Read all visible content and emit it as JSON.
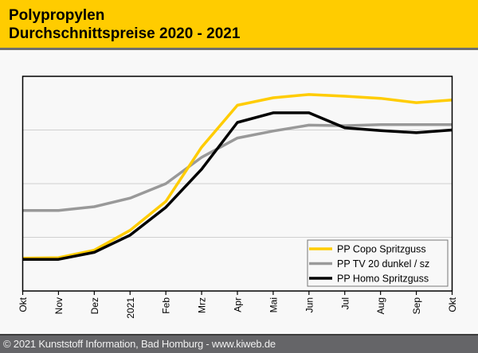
{
  "header": {
    "title_line1": "Polypropylen",
    "title_line2": "Durchschnittspreise 2020 - 2021"
  },
  "footer": {
    "text": "© 2021 Kunststoff Information, Bad Homburg - www.kiweb.de"
  },
  "colors": {
    "header_bg": "#ffcc00",
    "copo": "#ffcc00",
    "tv20": "#999999",
    "homo": "#000000",
    "gridline": "#d0d0d0"
  },
  "chart_data": {
    "type": "line",
    "title": "Polypropylen Durchschnittspreise 2020 - 2021",
    "xlabel": "",
    "ylabel": "",
    "categories": [
      "Okt",
      "Nov",
      "Dez",
      "2021",
      "Feb",
      "Mrz",
      "Apr",
      "Mai",
      "Jun",
      "Jul",
      "Aug",
      "Sep",
      "Okt"
    ],
    "ylim": [
      0,
      4
    ],
    "y_unit": "relative index (no y-axis labels shown)",
    "grid": "horizontal",
    "legend_position": "bottom-right",
    "series": [
      {
        "name": "PP Copo Spritzguss",
        "color": "#ffcc00",
        "values": [
          0.61,
          0.62,
          0.76,
          1.13,
          1.67,
          2.68,
          3.46,
          3.6,
          3.66,
          3.63,
          3.59,
          3.51,
          3.56
        ]
      },
      {
        "name": "PP TV 20 dunkel / sz",
        "color": "#999999",
        "values": [
          1.5,
          1.5,
          1.57,
          1.73,
          2.0,
          2.49,
          2.85,
          2.98,
          3.09,
          3.08,
          3.1,
          3.1,
          3.1
        ]
      },
      {
        "name": "PP Homo Spritzguss",
        "color": "#000000",
        "values": [
          0.59,
          0.59,
          0.72,
          1.04,
          1.56,
          2.27,
          3.14,
          3.32,
          3.32,
          3.04,
          2.99,
          2.95,
          3.0
        ]
      }
    ]
  }
}
